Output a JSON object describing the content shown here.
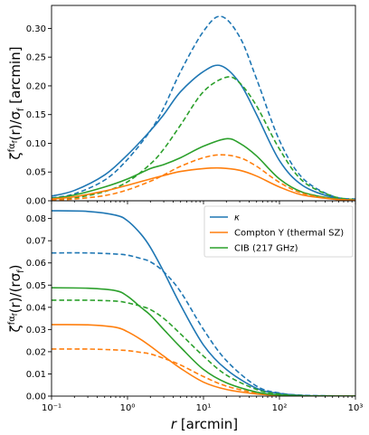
{
  "chart_data": [
    {
      "type": "line",
      "panel": "top",
      "xscale": "log",
      "xlim": [
        0.1,
        1000
      ],
      "ylim": [
        0,
        0.34
      ],
      "ylabel": "ζ^{fα_f}(r)/σ_f [arcmin]",
      "xlabel": "",
      "yticks": [
        "0.00",
        "0.05",
        "0.10",
        "0.15",
        "0.20",
        "0.25",
        "0.30"
      ],
      "yticks_values": [
        0,
        0.05,
        0.1,
        0.15,
        0.2,
        0.25,
        0.3
      ],
      "grid": false,
      "series": [
        {
          "color": "#1f77b4",
          "dashed": false,
          "x": [
            0.1,
            0.2,
            0.5,
            1,
            2,
            3,
            5,
            10,
            17,
            30,
            50,
            100,
            200,
            500,
            1000
          ],
          "y": [
            0.008,
            0.018,
            0.045,
            0.08,
            0.122,
            0.15,
            0.19,
            0.225,
            0.235,
            0.205,
            0.15,
            0.07,
            0.027,
            0.006,
            0.002
          ]
        },
        {
          "color": "#1f77b4",
          "dashed": true,
          "x": [
            0.1,
            0.2,
            0.5,
            1,
            2,
            3,
            5,
            10,
            17,
            30,
            50,
            100,
            200,
            500,
            1000
          ],
          "y": [
            0.005,
            0.012,
            0.036,
            0.072,
            0.122,
            0.162,
            0.225,
            0.295,
            0.321,
            0.285,
            0.212,
            0.105,
            0.04,
            0.008,
            0.003
          ]
        },
        {
          "color": "#2ca02c",
          "dashed": false,
          "x": [
            0.1,
            0.2,
            0.5,
            1,
            2,
            3,
            5,
            10,
            20,
            30,
            50,
            100,
            200,
            500,
            1000
          ],
          "y": [
            0.004,
            0.01,
            0.024,
            0.038,
            0.056,
            0.063,
            0.075,
            0.095,
            0.108,
            0.1,
            0.078,
            0.038,
            0.015,
            0.004,
            0.001
          ]
        },
        {
          "color": "#2ca02c",
          "dashed": true,
          "x": [
            0.1,
            0.2,
            0.5,
            1,
            2,
            3,
            5,
            10,
            20,
            30,
            50,
            100,
            200,
            500,
            1000
          ],
          "y": [
            0.002,
            0.005,
            0.016,
            0.033,
            0.064,
            0.09,
            0.132,
            0.19,
            0.215,
            0.205,
            0.165,
            0.09,
            0.035,
            0.008,
            0.002
          ]
        },
        {
          "color": "#ff7f0e",
          "dashed": false,
          "x": [
            0.1,
            0.2,
            0.5,
            1,
            2,
            3,
            5,
            10,
            17,
            30,
            50,
            100,
            200,
            500,
            1000
          ],
          "y": [
            0.003,
            0.007,
            0.017,
            0.027,
            0.038,
            0.044,
            0.051,
            0.056,
            0.057,
            0.053,
            0.043,
            0.024,
            0.01,
            0.003,
            0.001
          ]
        },
        {
          "color": "#ff7f0e",
          "dashed": true,
          "x": [
            0.1,
            0.2,
            0.5,
            1,
            2,
            3,
            5,
            10,
            17,
            30,
            50,
            100,
            200,
            500,
            1000
          ],
          "y": [
            0.001,
            0.003,
            0.009,
            0.019,
            0.034,
            0.045,
            0.06,
            0.075,
            0.08,
            0.075,
            0.06,
            0.032,
            0.013,
            0.003,
            0.001
          ]
        }
      ]
    },
    {
      "type": "line",
      "panel": "bottom",
      "xscale": "log",
      "xlim": [
        0.1,
        1000
      ],
      "ylim": [
        0,
        0.088
      ],
      "xlabel": "r [arcmin]",
      "ylabel": "ζ^{fα_f}(r)/(rσ_f)",
      "xticks": [
        "10⁻¹",
        "10⁰",
        "10¹",
        "10²",
        "10³"
      ],
      "xticks_values": [
        0.1,
        1,
        10,
        100,
        1000
      ],
      "yticks": [
        "0.00",
        "0.01",
        "0.02",
        "0.03",
        "0.04",
        "0.05",
        "0.06",
        "0.07",
        "0.08"
      ],
      "yticks_values": [
        0,
        0.01,
        0.02,
        0.03,
        0.04,
        0.05,
        0.06,
        0.07,
        0.08
      ],
      "grid": false,
      "legend_position": "top-right",
      "series": [
        {
          "name": "κ",
          "color": "#1f77b4",
          "dashed": false,
          "x": [
            0.1,
            0.3,
            0.7,
            1,
            1.5,
            2,
            3,
            5,
            10,
            20,
            50,
            100,
            200,
            500,
            1000
          ],
          "y": [
            0.0835,
            0.0832,
            0.0815,
            0.079,
            0.073,
            0.067,
            0.056,
            0.041,
            0.023,
            0.012,
            0.0035,
            0.0012,
            0.0003,
            0.0001,
            0.0
          ]
        },
        {
          "color": "#1f77b4",
          "dashed": true,
          "x": [
            0.1,
            0.3,
            0.7,
            1,
            1.5,
            2,
            3,
            5,
            10,
            20,
            50,
            100,
            200,
            500,
            1000
          ],
          "y": [
            0.0645,
            0.0645,
            0.064,
            0.0635,
            0.062,
            0.0605,
            0.056,
            0.047,
            0.03,
            0.016,
            0.0045,
            0.0014,
            0.0004,
            0.0001,
            0.0
          ]
        },
        {
          "name": "Compton Y (thermal SZ)",
          "color": "#ff7f0e",
          "dashed": false,
          "x": [
            0.1,
            0.3,
            0.7,
            1,
            1.5,
            2,
            3,
            5,
            10,
            20,
            50,
            100,
            200,
            500,
            1000
          ],
          "y": [
            0.0322,
            0.0321,
            0.031,
            0.029,
            0.0255,
            0.0225,
            0.018,
            0.0125,
            0.0063,
            0.003,
            0.001,
            0.0003,
            0.0001,
            0.0,
            0.0
          ]
        },
        {
          "color": "#ff7f0e",
          "dashed": true,
          "x": [
            0.1,
            0.3,
            0.7,
            1,
            1.5,
            2,
            3,
            5,
            10,
            20,
            50,
            100,
            200,
            500,
            1000
          ],
          "y": [
            0.0212,
            0.0212,
            0.0208,
            0.0205,
            0.0197,
            0.019,
            0.017,
            0.014,
            0.0088,
            0.0045,
            0.0014,
            0.0004,
            0.0001,
            0.0,
            0.0
          ]
        },
        {
          "name": "CIB (217 GHz)",
          "color": "#2ca02c",
          "dashed": false,
          "x": [
            0.1,
            0.3,
            0.7,
            1,
            1.5,
            2,
            3,
            5,
            10,
            20,
            50,
            100,
            200,
            500,
            1000
          ],
          "y": [
            0.0488,
            0.0486,
            0.0475,
            0.045,
            0.04,
            0.0365,
            0.03,
            0.022,
            0.012,
            0.006,
            0.0018,
            0.0005,
            0.0001,
            0.0,
            0.0
          ]
        },
        {
          "color": "#2ca02c",
          "dashed": true,
          "x": [
            0.1,
            0.3,
            0.7,
            1,
            1.5,
            2,
            3,
            5,
            10,
            20,
            50,
            100,
            200,
            500,
            1000
          ],
          "y": [
            0.0432,
            0.0432,
            0.0428,
            0.042,
            0.0405,
            0.039,
            0.035,
            0.028,
            0.018,
            0.0095,
            0.003,
            0.0009,
            0.0002,
            0.0,
            0.0
          ]
        }
      ]
    }
  ]
}
